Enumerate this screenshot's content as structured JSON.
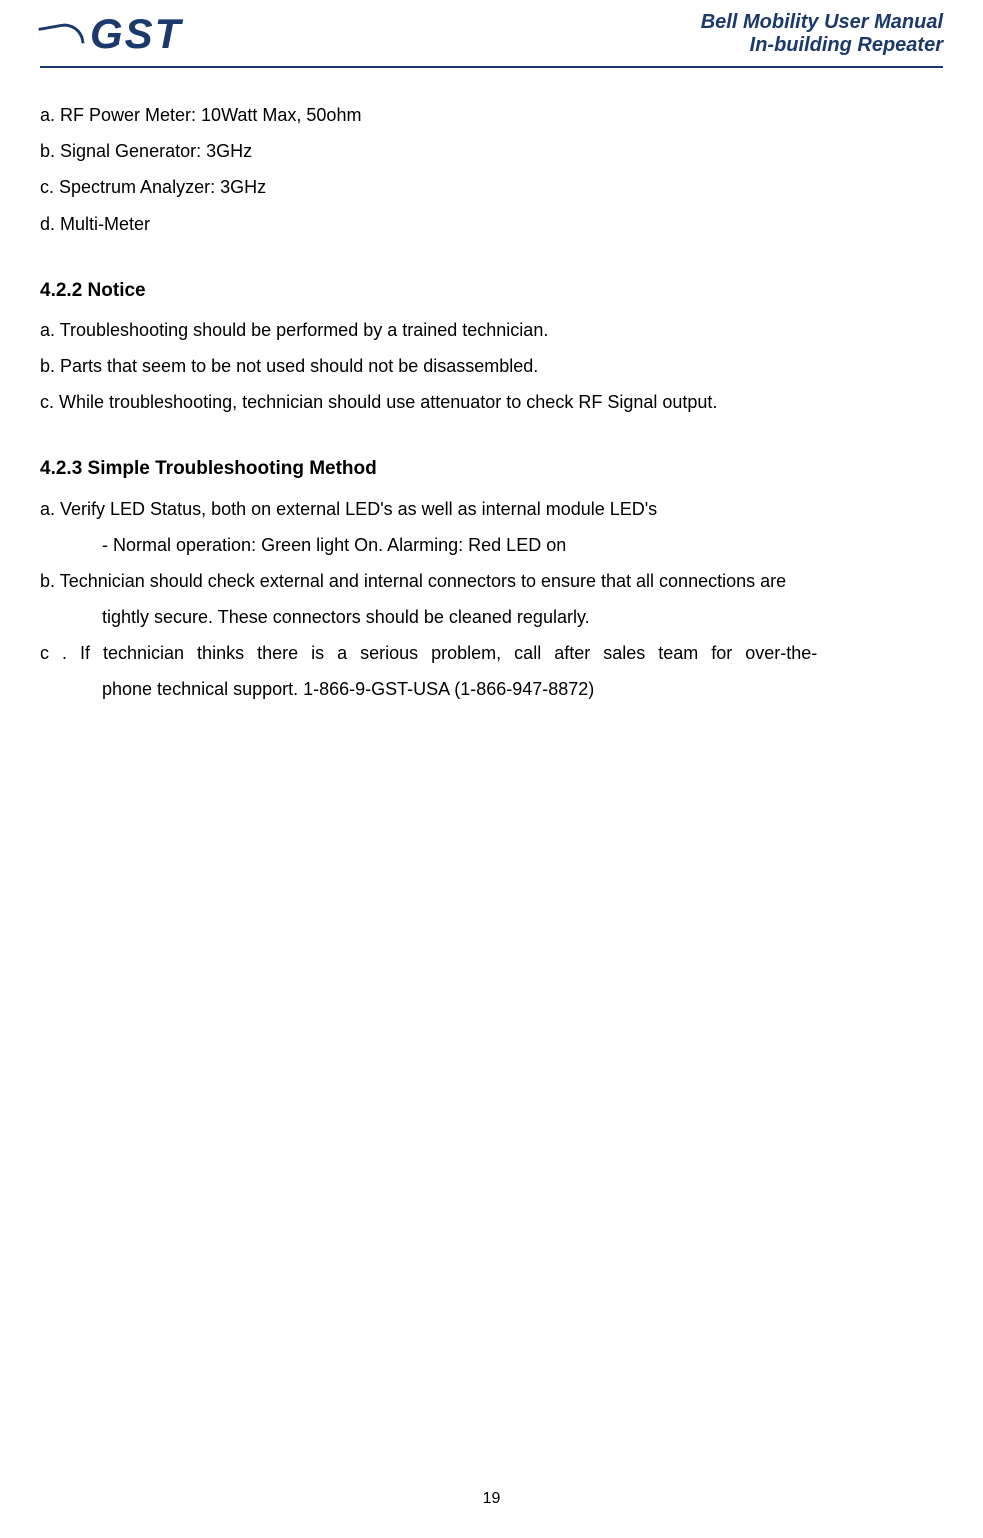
{
  "header": {
    "logo_text": "GST",
    "title_line1": "Bell Mobility User Manual",
    "title_line2": "In-building  Repeater"
  },
  "content": {
    "section_421": {
      "item_a": "a. RF Power Meter: 10Watt Max, 50ohm",
      "item_b": "b. Signal Generator: 3GHz",
      "item_c": "c. Spectrum Analyzer: 3GHz",
      "item_d": "d. Multi-Meter"
    },
    "section_422": {
      "heading": "4.2.2 Notice",
      "item_a": "a. Troubleshooting should be performed by a trained technician.",
      "item_b": "b. Parts that seem to be not used should not be disassembled.",
      "item_c": "c. While troubleshooting, technician should use attenuator to check RF Signal output."
    },
    "section_423": {
      "heading": "4.2.3 Simple Troubleshooting Method",
      "item_a": "a.  Verify LED Status, both on external LED's as well as internal module LED's",
      "item_a_sub": "-  Normal operation: Green light On.  Alarming: Red LED on",
      "item_b": "b.  Technician should check external and internal connectors to ensure that all connections are",
      "item_b_cont": "tightly secure.  These connectors should be cleaned regularly.",
      "item_c": "c .  If  technician  thinks  there  is  a  serious  problem,  call  after  sales  team  for  over-the-",
      "item_c_cont": "phone technical support.  1-866-9-GST-USA    (1-866-947-8872)"
    }
  },
  "footer": {
    "page_number": "19"
  },
  "colors": {
    "brand": "#1b3a6b",
    "text": "#000000",
    "background": "#ffffff"
  }
}
